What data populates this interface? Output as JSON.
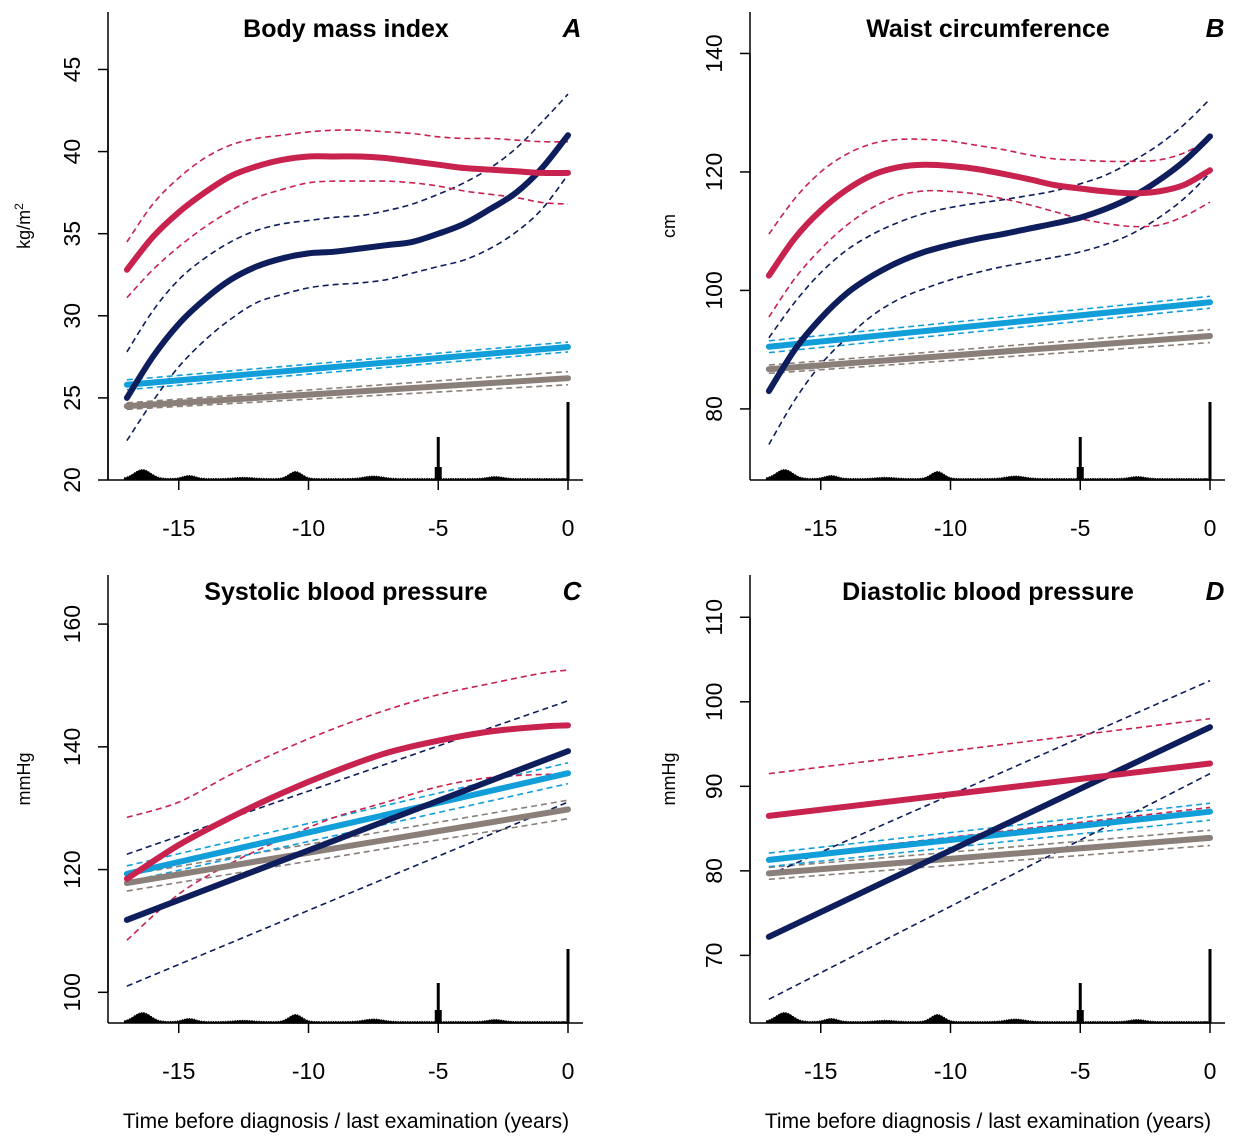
{
  "x_axis_label": "Time before diagnosis / last examination (years)",
  "colors": {
    "pink": "#c8224f",
    "navy": "#0e1d5c",
    "light_blue": "#129fd9",
    "gray": "#8a7f79",
    "histogram": "#000000"
  },
  "chart_data": [
    {
      "id": "A",
      "type": "line",
      "letter": "A",
      "title": "Body mass index",
      "ylabel": "kg/m",
      "ylabel_sup": "2",
      "xlim": [
        -18,
        0.3
      ],
      "ylim": [
        20,
        48.5
      ],
      "xticks": [
        -15,
        -10,
        -5,
        0
      ],
      "yticks": [
        20,
        25,
        30,
        35,
        40,
        45
      ],
      "series": [
        {
          "color": "pink",
          "x": [
            -17,
            -16,
            -15,
            -14,
            -13,
            -12,
            -11,
            -10,
            -9,
            -8,
            -7,
            -6,
            -5,
            -4,
            -3,
            -2,
            -1,
            0
          ],
          "mean": [
            32.8,
            34.8,
            36.3,
            37.5,
            38.5,
            39.1,
            39.5,
            39.7,
            39.7,
            39.7,
            39.6,
            39.4,
            39.2,
            39.0,
            38.9,
            38.8,
            38.7,
            38.7
          ],
          "lower": [
            31.1,
            32.8,
            34.2,
            35.4,
            36.4,
            37.2,
            37.7,
            38.1,
            38.2,
            38.2,
            38.2,
            38.1,
            37.9,
            37.6,
            37.4,
            37.2,
            36.9,
            36.8
          ],
          "upper": [
            34.5,
            36.8,
            38.4,
            39.6,
            40.4,
            40.8,
            41.0,
            41.2,
            41.3,
            41.3,
            41.2,
            41.1,
            40.9,
            40.8,
            40.8,
            40.7,
            40.6,
            40.6
          ]
        },
        {
          "color": "navy",
          "x": [
            -17,
            -16,
            -15,
            -14,
            -13,
            -12,
            -11,
            -10,
            -9,
            -8,
            -7,
            -6,
            -5,
            -4,
            -3,
            -2,
            -1,
            0
          ],
          "mean": [
            25.0,
            27.5,
            29.5,
            31.0,
            32.2,
            33.0,
            33.5,
            33.8,
            33.9,
            34.1,
            34.3,
            34.5,
            35.0,
            35.6,
            36.5,
            37.5,
            39.0,
            41.0
          ],
          "lower": [
            22.4,
            24.8,
            26.9,
            28.5,
            29.8,
            30.8,
            31.3,
            31.7,
            31.9,
            32.0,
            32.2,
            32.6,
            33.0,
            33.4,
            34.1,
            35.1,
            36.5,
            38.6
          ],
          "upper": [
            27.8,
            30.3,
            32.2,
            33.5,
            34.5,
            35.2,
            35.6,
            35.8,
            36.0,
            36.1,
            36.4,
            36.8,
            37.4,
            38.1,
            39.0,
            40.2,
            41.8,
            43.5
          ]
        },
        {
          "color": "light_blue",
          "x": [
            -17,
            0
          ],
          "mean": [
            25.8,
            28.1
          ],
          "lower": [
            25.5,
            27.8
          ],
          "upper": [
            26.1,
            28.4
          ]
        },
        {
          "color": "gray",
          "x": [
            -17,
            0
          ],
          "mean": [
            24.5,
            26.2
          ],
          "lower": [
            24.3,
            25.8
          ],
          "upper": [
            24.7,
            26.6
          ]
        }
      ]
    },
    {
      "id": "B",
      "type": "line",
      "letter": "B",
      "title": "Waist circumference",
      "ylabel": "cm",
      "ylabel_sup": "",
      "xlim": [
        -18,
        0.3
      ],
      "ylim": [
        68,
        147
      ],
      "xticks": [
        -15,
        -10,
        -5,
        0
      ],
      "yticks": [
        80,
        100,
        120,
        140
      ],
      "series": [
        {
          "color": "pink",
          "x": [
            -17,
            -16,
            -15,
            -14,
            -13,
            -12,
            -11,
            -10,
            -9,
            -8,
            -7,
            -6,
            -5,
            -4,
            -3,
            -2,
            -1,
            0
          ],
          "mean": [
            102.5,
            108.8,
            113.5,
            117.0,
            119.5,
            120.8,
            121.2,
            121.0,
            120.5,
            119.7,
            118.8,
            117.8,
            117.2,
            116.7,
            116.4,
            116.7,
            117.8,
            120.3
          ],
          "lower": [
            95.5,
            102.0,
            107.0,
            111.0,
            114.0,
            116.0,
            116.8,
            116.7,
            116.3,
            115.5,
            114.5,
            113.3,
            112.1,
            111.3,
            110.8,
            111.0,
            112.5,
            114.9
          ],
          "upper": [
            109.5,
            115.5,
            120.0,
            123.0,
            124.8,
            125.5,
            125.5,
            125.2,
            124.5,
            123.8,
            122.9,
            122.2,
            122.0,
            121.8,
            121.8,
            122.0,
            123.2,
            125.6
          ]
        },
        {
          "color": "navy",
          "x": [
            -17,
            -16,
            -15,
            -14,
            -13,
            -12,
            -11,
            -10,
            -9,
            -8,
            -7,
            -6,
            -5,
            -4,
            -3,
            -2,
            -1,
            0
          ],
          "mean": [
            83.0,
            90.0,
            95.3,
            99.5,
            102.5,
            104.8,
            106.5,
            107.7,
            108.7,
            109.5,
            110.4,
            111.3,
            112.3,
            113.8,
            115.8,
            118.5,
            121.8,
            126.0
          ],
          "lower": [
            74.0,
            81.5,
            87.5,
            92.0,
            95.8,
            98.5,
            100.3,
            101.8,
            103.0,
            104.0,
            104.8,
            105.6,
            106.5,
            107.8,
            109.6,
            112.2,
            115.5,
            119.8
          ],
          "upper": [
            92.0,
            98.0,
            103.0,
            106.8,
            109.5,
            111.5,
            113.0,
            114.0,
            114.7,
            115.3,
            116.0,
            116.8,
            118.0,
            119.5,
            121.8,
            124.5,
            128.0,
            132.3
          ]
        },
        {
          "color": "light_blue",
          "x": [
            -17,
            0
          ],
          "mean": [
            90.5,
            98.0
          ],
          "lower": [
            89.5,
            97.0
          ],
          "upper": [
            91.5,
            99.0
          ]
        },
        {
          "color": "gray",
          "x": [
            -17,
            0
          ],
          "mean": [
            86.7,
            92.3
          ],
          "lower": [
            86.0,
            91.2
          ],
          "upper": [
            87.4,
            93.4
          ]
        }
      ]
    },
    {
      "id": "C",
      "type": "line",
      "letter": "C",
      "title": "Systolic blood pressure",
      "ylabel": "mmHg",
      "ylabel_sup": "",
      "xlim": [
        -18,
        0.3
      ],
      "ylim": [
        95,
        168
      ],
      "xticks": [
        -15,
        -10,
        -5,
        0
      ],
      "yticks": [
        100,
        120,
        140,
        160
      ],
      "series": [
        {
          "color": "pink",
          "x": [
            -17,
            -15,
            -13,
            -11,
            -9,
            -7,
            -5,
            -3,
            -1,
            0
          ],
          "mean": [
            118.5,
            124.0,
            128.5,
            132.5,
            136.0,
            139.0,
            141.0,
            142.5,
            143.3,
            143.5
          ],
          "lower": [
            108.5,
            116.0,
            121.0,
            125.0,
            128.5,
            131.0,
            133.5,
            135.0,
            135.5,
            135.5
          ],
          "upper": [
            128.5,
            131.0,
            135.5,
            139.5,
            143.0,
            146.0,
            148.5,
            150.3,
            152.0,
            152.5
          ]
        },
        {
          "color": "navy",
          "x": [
            -17,
            0
          ],
          "mean": [
            111.8,
            139.3
          ],
          "lower": [
            101.0,
            131.0
          ],
          "upper": [
            122.5,
            147.5
          ]
        },
        {
          "color": "light_blue",
          "x": [
            -17,
            0
          ],
          "mean": [
            119.3,
            135.7
          ],
          "lower": [
            118.0,
            134.0
          ],
          "upper": [
            120.6,
            137.4
          ]
        },
        {
          "color": "gray",
          "x": [
            -17,
            0
          ],
          "mean": [
            117.8,
            129.8
          ],
          "lower": [
            116.5,
            128.3
          ],
          "upper": [
            119.1,
            131.3
          ]
        }
      ]
    },
    {
      "id": "D",
      "type": "line",
      "letter": "D",
      "title": "Diastolic blood pressure",
      "ylabel": "mmHg",
      "ylabel_sup": "",
      "xlim": [
        -18,
        0.3
      ],
      "ylim": [
        62,
        115
      ],
      "xticks": [
        -15,
        -10,
        -5,
        0
      ],
      "yticks": [
        70,
        80,
        90,
        100,
        110
      ],
      "series": [
        {
          "color": "pink",
          "x": [
            -17,
            0
          ],
          "mean": [
            86.5,
            92.7
          ],
          "lower": [
            81.5,
            87.5
          ],
          "upper": [
            91.5,
            98.0
          ]
        },
        {
          "color": "navy",
          "x": [
            -17,
            0
          ],
          "mean": [
            72.2,
            97.0
          ],
          "lower": [
            64.8,
            91.5
          ],
          "upper": [
            79.5,
            102.5
          ]
        },
        {
          "color": "light_blue",
          "x": [
            -17,
            0
          ],
          "mean": [
            81.3,
            87.0
          ],
          "lower": [
            80.5,
            86.0
          ],
          "upper": [
            82.1,
            88.0
          ]
        },
        {
          "color": "gray",
          "x": [
            -17,
            0
          ],
          "mean": [
            79.7,
            83.9
          ],
          "lower": [
            79.0,
            83.0
          ],
          "upper": [
            80.4,
            84.8
          ]
        }
      ]
    }
  ]
}
